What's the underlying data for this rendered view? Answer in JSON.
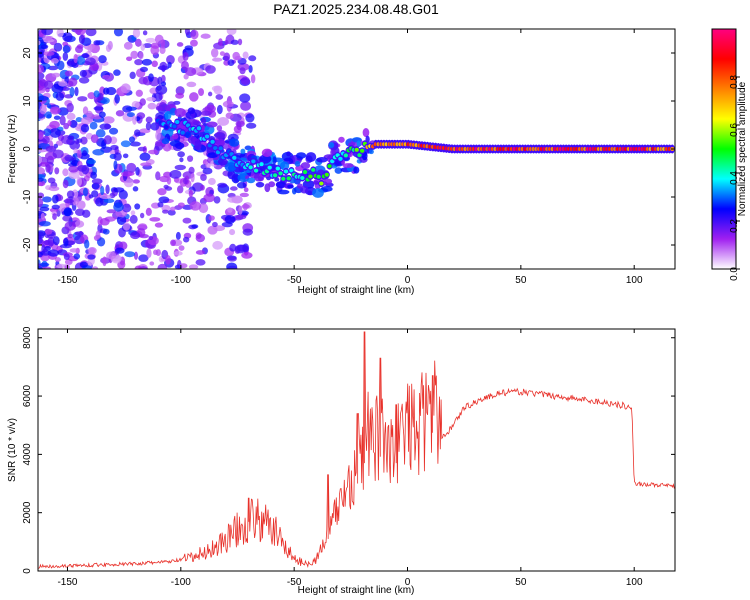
{
  "title": "PAZ1.2025.234.08.48.G01",
  "chart_data": [
    {
      "type": "heatmap",
      "name": "spectrogram",
      "xlabel": "Height of straight line (km)",
      "ylabel": "Frequency (Hz)",
      "xlim": [
        -163,
        118
      ],
      "ylim": [
        -25,
        25
      ],
      "xticks": [
        -150,
        -100,
        -50,
        0,
        50,
        100
      ],
      "xtick_labels": [
        "-150",
        "-100",
        "-50",
        "0",
        "50",
        "100"
      ],
      "yticks": [
        -20,
        -10,
        0,
        10,
        20
      ],
      "ytick_labels": [
        "-20",
        "-10",
        "0",
        "10",
        "20"
      ],
      "colorbar": {
        "label": "Normalized spectral amplitude",
        "range": [
          0.0,
          1.0
        ],
        "ticks": [
          0.0,
          0.2,
          0.4,
          0.6,
          0.8
        ],
        "tick_labels": [
          "0.0",
          "0.2",
          "0.4",
          "0.6",
          "0.8"
        ],
        "colors": [
          "#ffffff",
          "#a020f0",
          "#0000ff",
          "#00ffff",
          "#00ff00",
          "#ffff00",
          "#ff8000",
          "#ff0000",
          "#ff0080"
        ]
      },
      "ridge": {
        "x": [
          -105,
          -95,
          -85,
          -75,
          -65,
          -55,
          -45,
          -38,
          -32,
          -25,
          -20,
          -15,
          0,
          10,
          20,
          50,
          100,
          118
        ],
        "freq": [
          5,
          4,
          1,
          -3,
          -4,
          -5,
          -5,
          -6,
          -2,
          -1,
          0,
          1,
          1,
          0.5,
          0,
          0,
          0,
          0
        ],
        "amp": [
          0.3,
          0.35,
          0.3,
          0.35,
          0.4,
          0.4,
          0.45,
          0.5,
          0.4,
          0.45,
          0.55,
          0.7,
          0.75,
          0.8,
          0.85,
          0.85,
          0.85,
          0.8
        ]
      }
    },
    {
      "type": "line",
      "name": "snr",
      "xlabel": "Height of straight line (km)",
      "ylabel": "SNR (10 * v/v)",
      "xlim": [
        -163,
        118
      ],
      "ylim": [
        0,
        8300
      ],
      "xticks": [
        -150,
        -100,
        -50,
        0,
        50,
        100
      ],
      "xtick_labels": [
        "-150",
        "-100",
        "-50",
        "0",
        "50",
        "100"
      ],
      "yticks": [
        0,
        2000,
        4000,
        6000,
        8000
      ],
      "ytick_labels": [
        "0",
        "2000",
        "4000",
        "6000",
        "8000"
      ],
      "color": "#e8312a",
      "series": [
        {
          "name": "SNR",
          "x": [
            -163,
            -140,
            -120,
            -105,
            -95,
            -85,
            -75,
            -68,
            -60,
            -55,
            -50,
            -45,
            -40,
            -35,
            -30,
            -25,
            -20,
            -18,
            -15,
            -10,
            -5,
            0,
            5,
            10,
            15,
            20,
            25,
            30,
            40,
            50,
            60,
            70,
            80,
            90,
            97,
            99,
            100,
            110,
            118
          ],
          "y": [
            150,
            200,
            250,
            320,
            450,
            800,
            1400,
            1800,
            1500,
            1000,
            400,
            250,
            400,
            1100,
            2000,
            2700,
            3200,
            4200,
            3800,
            4000,
            3700,
            4300,
            4200,
            4800,
            4500,
            5000,
            5600,
            5800,
            6100,
            6150,
            6050,
            5950,
            5850,
            5750,
            5650,
            5500,
            3000,
            2950,
            2900
          ]
        }
      ],
      "peaks": [
        {
          "x": -70,
          "y": 2500
        },
        {
          "x": -35,
          "y": 3300
        },
        {
          "x": -22,
          "y": 5400
        },
        {
          "x": -19,
          "y": 8200
        },
        {
          "x": -12,
          "y": 7300
        },
        {
          "x": -5,
          "y": 5700
        },
        {
          "x": 11,
          "y": 6700
        }
      ]
    }
  ]
}
